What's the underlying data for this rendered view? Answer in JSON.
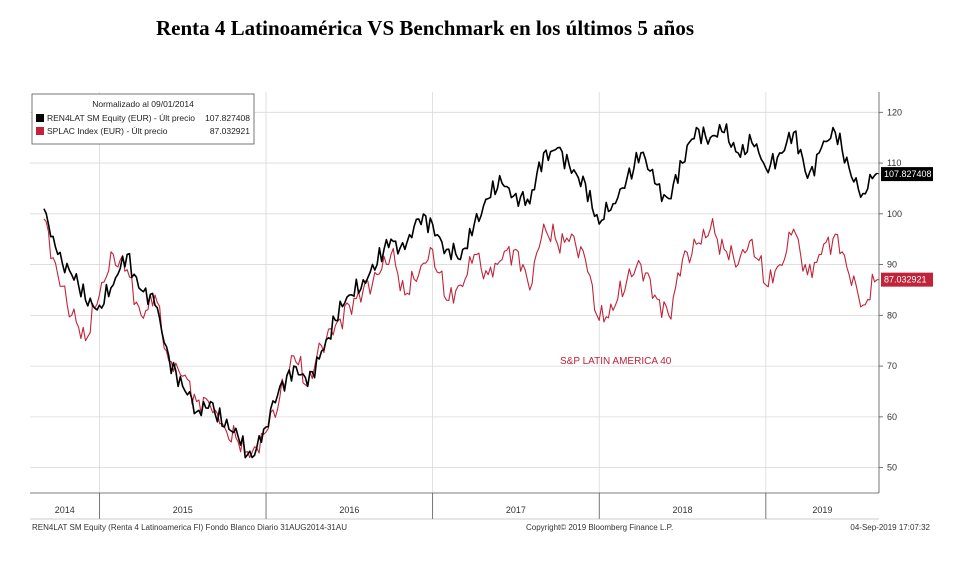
{
  "title": "Renta 4 Latinoamérica VS Benchmark en los últimos 5 años",
  "legend": {
    "header": "Normalizado al 09/01/2014",
    "items": [
      {
        "label": "REN4LAT SM Equity (EUR) - Últ precio",
        "value": "107.827408"
      },
      {
        "label": "SPLAC Index (EUR) - Últ precio",
        "value": "87.032921"
      }
    ]
  },
  "annotation": "S&P LATIN AMERICA 40",
  "footer": {
    "left": "REN4LAT SM Equity (Renta 4 Latinoamerica FI) Fondo Blanco  Diario 31AUG2014-31AU",
    "center": "Copyright© 2019 Bloomberg Finance L.P.",
    "right": "04-Sep-2019 17:07:32"
  },
  "colors": {
    "fund": "#000000",
    "index": "#c0233a",
    "grid": "#d9d9d9"
  },
  "chart_data": {
    "type": "line",
    "x_ticks": [
      "2014",
      "2015",
      "2016",
      "2017",
      "2018",
      "2019"
    ],
    "y_ticks": [
      50,
      60,
      70,
      80,
      90,
      100,
      110,
      120
    ],
    "ylim": [
      45,
      124
    ],
    "grid": true,
    "legend_position": "top-left",
    "last_value_labels": [
      "107.827408",
      "87.032921"
    ],
    "series": [
      {
        "name": "REN4LAT SM Equity (EUR) - Últ precio",
        "x": [
          "2014-09",
          "2014-10",
          "2014-11",
          "2014-12",
          "2015-01",
          "2015-02",
          "2015-03",
          "2015-04",
          "2015-05",
          "2015-06",
          "2015-07",
          "2015-08",
          "2015-09",
          "2015-10",
          "2015-11",
          "2015-12",
          "2016-01",
          "2016-02",
          "2016-03",
          "2016-04",
          "2016-05",
          "2016-06",
          "2016-07",
          "2016-08",
          "2016-09",
          "2016-10",
          "2016-11",
          "2016-12",
          "2017-01",
          "2017-02",
          "2017-03",
          "2017-04",
          "2017-05",
          "2017-06",
          "2017-07",
          "2017-08",
          "2017-09",
          "2017-10",
          "2017-11",
          "2017-12",
          "2018-01",
          "2018-02",
          "2018-03",
          "2018-04",
          "2018-05",
          "2018-06",
          "2018-07",
          "2018-08",
          "2018-09",
          "2018-10",
          "2018-11",
          "2018-12",
          "2019-01",
          "2019-02",
          "2019-03",
          "2019-04",
          "2019-05",
          "2019-06",
          "2019-07",
          "2019-08",
          "2019-09"
        ],
        "values": [
          101,
          92,
          88,
          83,
          82,
          86,
          92,
          85,
          82,
          72,
          66,
          61,
          63,
          58,
          56,
          52,
          58,
          66,
          70,
          66,
          73,
          79,
          84,
          87,
          90,
          95,
          93,
          99,
          98,
          93,
          91,
          98,
          103,
          106,
          104,
          102,
          112,
          113,
          108,
          106,
          98,
          102,
          107,
          112,
          106,
          103,
          110,
          117,
          115,
          116,
          112,
          114,
          109,
          112,
          116,
          107,
          113,
          116,
          109,
          104,
          108
        ]
      },
      {
        "name": "SPLAC Index (EUR) - Últ precio",
        "x": [
          "2014-09",
          "2014-10",
          "2014-11",
          "2014-12",
          "2015-01",
          "2015-02",
          "2015-03",
          "2015-04",
          "2015-05",
          "2015-06",
          "2015-07",
          "2015-08",
          "2015-09",
          "2015-10",
          "2015-11",
          "2015-12",
          "2016-01",
          "2016-02",
          "2016-03",
          "2016-04",
          "2016-05",
          "2016-06",
          "2016-07",
          "2016-08",
          "2016-09",
          "2016-10",
          "2016-11",
          "2016-12",
          "2017-01",
          "2017-02",
          "2017-03",
          "2017-04",
          "2017-05",
          "2017-06",
          "2017-07",
          "2017-08",
          "2017-09",
          "2017-10",
          "2017-11",
          "2017-12",
          "2018-01",
          "2018-02",
          "2018-03",
          "2018-04",
          "2018-05",
          "2018-06",
          "2018-07",
          "2018-08",
          "2018-09",
          "2018-10",
          "2018-11",
          "2018-12",
          "2019-01",
          "2019-02",
          "2019-03",
          "2019-04",
          "2019-05",
          "2019-06",
          "2019-07",
          "2019-08",
          "2019-09"
        ],
        "values": [
          99,
          88,
          80,
          75,
          84,
          92,
          89,
          80,
          84,
          71,
          68,
          63,
          62,
          58,
          55,
          53,
          57,
          64,
          72,
          66,
          74,
          78,
          82,
          85,
          88,
          92,
          84,
          88,
          93,
          83,
          86,
          92,
          88,
          91,
          93,
          85,
          98,
          94,
          96,
          91,
          79,
          81,
          87,
          90,
          84,
          80,
          91,
          94,
          97,
          93,
          90,
          95,
          86,
          90,
          97,
          88,
          92,
          96,
          88,
          82,
          87
        ]
      }
    ]
  }
}
